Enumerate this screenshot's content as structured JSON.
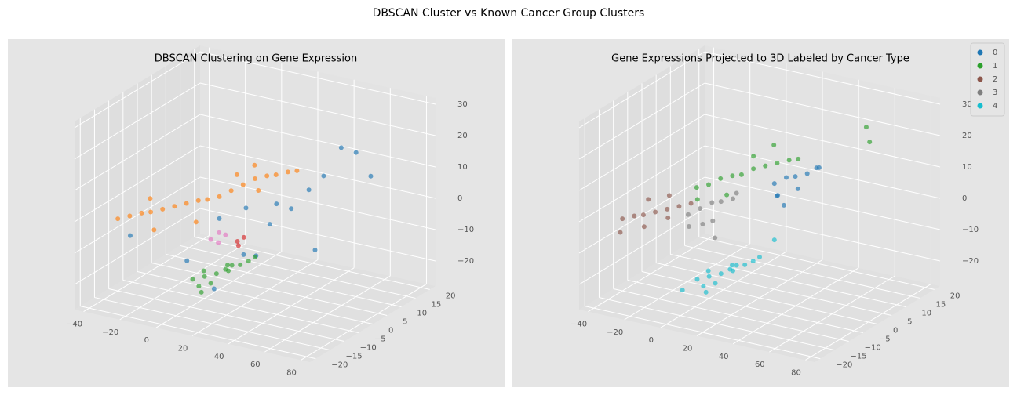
{
  "title": "DBSCAN Cluster vs Known Cancer Group Clusters",
  "chart_data": [
    {
      "type": "scatter3d",
      "title": "DBSCAN Clustering on Gene Expression",
      "xlim": [
        -45,
        85
      ],
      "ylim": [
        -22,
        22
      ],
      "zlim": [
        -28,
        32
      ],
      "xticks": [
        {
          "value": -40,
          "label": "−40"
        },
        {
          "value": -20,
          "label": "−20"
        },
        0,
        20,
        40,
        60,
        80
      ],
      "yticks": [
        {
          "value": -20,
          "label": "−20"
        },
        {
          "value": -15,
          "label": "−15"
        },
        {
          "value": -10,
          "label": "−10"
        },
        {
          "value": -5,
          "label": "−5"
        },
        0,
        5,
        10,
        15,
        20
      ],
      "zticks": [
        {
          "value": -20,
          "label": "−20"
        },
        {
          "value": -10,
          "label": "−10"
        },
        0,
        10,
        20,
        30
      ],
      "grid": true,
      "legend": false,
      "series": [
        {
          "color": "#1f77b4",
          "x": [
            5,
            15,
            25,
            35,
            45,
            50,
            55,
            60,
            30,
            20,
            40,
            -30,
            -5,
            10,
            50,
            65
          ],
          "y": [
            -3,
            0,
            2,
            -2,
            3,
            5,
            8,
            10,
            -6,
            -4,
            0,
            -12,
            -8,
            -8,
            2,
            12
          ],
          "z": [
            -3,
            0,
            -5,
            5,
            8,
            12,
            20,
            18,
            -10,
            -12,
            3,
            -8,
            -15,
            -22,
            -10,
            10
          ]
        },
        {
          "color": "#ff7f0e",
          "x": [
            -40,
            -35,
            -30,
            -25,
            -20,
            -15,
            -10,
            -5,
            0,
            5,
            10,
            15,
            20,
            25,
            30,
            35,
            40,
            -20,
            0,
            10,
            -30,
            15,
            25
          ],
          "y": [
            -10,
            -9,
            -8,
            -8,
            -7,
            -6,
            -5,
            -4,
            -4,
            -3,
            -2,
            -1,
            0,
            1,
            1,
            2,
            2,
            -10,
            -8,
            0,
            -5,
            3,
            -2
          ],
          "z": [
            -5,
            -4,
            -3,
            -2,
            -1,
            0,
            1,
            2,
            3,
            4,
            6,
            8,
            10,
            11,
            12,
            13,
            14,
            -6,
            -2,
            10,
            0,
            12,
            8
          ]
        },
        {
          "color": "#2ca02c",
          "x": [
            -5,
            0,
            5,
            10,
            15,
            20,
            0,
            5,
            10,
            -2,
            8,
            18,
            12,
            3
          ],
          "y": [
            -6,
            -5,
            -4,
            -3,
            -2,
            0,
            -7,
            -6,
            -4,
            -4,
            -2,
            -1,
            -3,
            -8
          ],
          "z": [
            -22,
            -21,
            -20,
            -19,
            -17,
            -15,
            -23,
            -22,
            -18,
            -20,
            -18,
            -16,
            -17,
            -24
          ]
        },
        {
          "color": "#e377c2",
          "x": [
            5,
            8,
            10,
            6
          ],
          "y": [
            -6,
            -5,
            -4,
            -4
          ],
          "z": [
            -8,
            -6,
            -7,
            -10
          ]
        },
        {
          "color": "#d62728",
          "x": [
            15,
            17,
            14
          ],
          "y": [
            -3,
            -2,
            -2
          ],
          "z": [
            -9,
            -8,
            -11
          ]
        }
      ]
    },
    {
      "type": "scatter3d",
      "title": "Gene Expressions Projected to 3D Labeled by Cancer Type",
      "xlim": [
        -45,
        85
      ],
      "ylim": [
        -22,
        22
      ],
      "zlim": [
        -28,
        32
      ],
      "xticks": [
        {
          "value": -40,
          "label": "−40"
        },
        {
          "value": -20,
          "label": "−20"
        },
        0,
        20,
        40,
        60,
        80
      ],
      "yticks": [
        {
          "value": -20,
          "label": "−20"
        },
        {
          "value": -15,
          "label": "−15"
        },
        {
          "value": -10,
          "label": "−10"
        },
        {
          "value": -5,
          "label": "−5"
        },
        0,
        5,
        10,
        15,
        20
      ],
      "zticks": [
        {
          "value": -20,
          "label": "−20"
        },
        {
          "value": -10,
          "label": "−10"
        },
        0,
        10,
        20,
        30
      ],
      "grid": true,
      "legend": "upper right",
      "series": [
        {
          "name": "0",
          "color": "#1f77b4",
          "x": [
            25,
            30,
            35,
            40,
            45,
            30,
            38,
            42,
            28,
            35
          ],
          "y": [
            2,
            3,
            3,
            4,
            5,
            0,
            2,
            6,
            1,
            -1
          ],
          "z": [
            8,
            10,
            11,
            12,
            14,
            6,
            8,
            13,
            5,
            4
          ]
        },
        {
          "name": "1",
          "color": "#2ca02c",
          "x": [
            -10,
            -5,
            0,
            5,
            10,
            15,
            20,
            25,
            30,
            35,
            60,
            65,
            5,
            15,
            -8,
            20
          ],
          "y": [
            -3,
            -2,
            -1,
            0,
            0,
            1,
            2,
            3,
            4,
            4,
            12,
            10,
            -2,
            1,
            -4,
            5
          ],
          "z": [
            5,
            6,
            8,
            9,
            10,
            12,
            13,
            14,
            15,
            16,
            25,
            22,
            4,
            16,
            2,
            18
          ]
        },
        {
          "name": "2",
          "color": "#8c564b",
          "x": [
            -40,
            -35,
            -30,
            -25,
            -20,
            -15,
            -10,
            -38,
            -28,
            -18,
            -32,
            -22
          ],
          "y": [
            -10,
            -9,
            -9,
            -8,
            -7,
            -6,
            -5,
            -12,
            -10,
            -8,
            -6,
            -5
          ],
          "z": [
            -5,
            -4,
            -3,
            -2,
            -1,
            0,
            1,
            -8,
            -6,
            -3,
            0,
            2
          ]
        },
        {
          "name": "3",
          "color": "#7f7f7f",
          "x": [
            -10,
            -5,
            0,
            5,
            10,
            -8,
            2,
            12,
            -2,
            8
          ],
          "y": [
            -6,
            -5,
            -4,
            -4,
            -3,
            -7,
            -5,
            -3,
            -6,
            -8
          ],
          "z": [
            -2,
            0,
            2,
            3,
            4,
            -5,
            -3,
            6,
            -4,
            -6
          ]
        },
        {
          "name": "4",
          "color": "#17becf",
          "x": [
            -5,
            0,
            5,
            10,
            15,
            20,
            0,
            5,
            10,
            -2,
            8,
            18,
            12,
            3,
            25,
            -10
          ],
          "y": [
            -6,
            -5,
            -4,
            -3,
            -2,
            0,
            -7,
            -6,
            -4,
            -4,
            -2,
            -1,
            -3,
            -8,
            2,
            -8
          ],
          "z": [
            -22,
            -21,
            -20,
            -19,
            -17,
            -15,
            -23,
            -22,
            -18,
            -20,
            -18,
            -16,
            -17,
            -24,
            -10,
            -25
          ]
        }
      ]
    }
  ]
}
